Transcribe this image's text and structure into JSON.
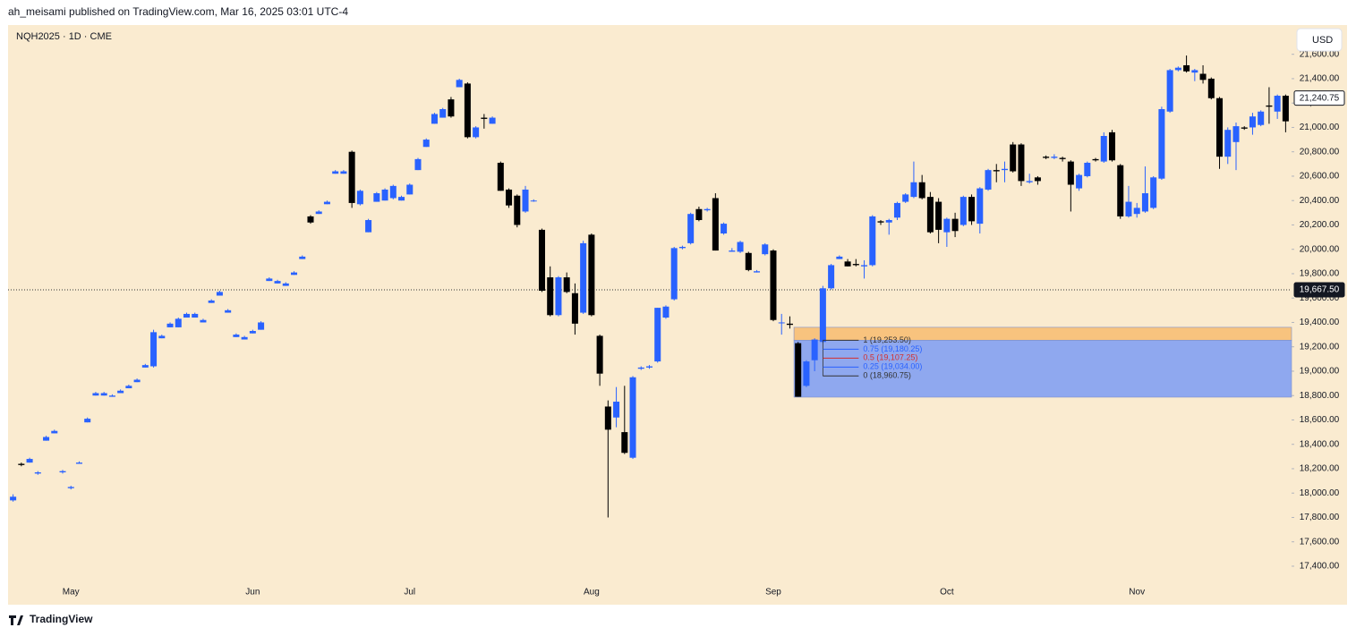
{
  "header": {
    "publisher": "ah_meisami published on TradingView.com, Mar 16, 2025 03:01 UTC-4"
  },
  "footer": {
    "brand": "TradingView"
  },
  "chart_data": {
    "type": "candlestick",
    "symbol": "NQH2025 · 1D · CME",
    "currency": "USD",
    "categories": [
      null,
      null,
      null,
      null,
      null,
      null,
      null,
      "May",
      null,
      null,
      null,
      null,
      null,
      null,
      null,
      null,
      null,
      null,
      null,
      null,
      null,
      null,
      null,
      null,
      null,
      null,
      null,
      null,
      null,
      "Jun",
      null,
      null,
      null,
      null,
      null,
      null,
      null,
      null,
      null,
      null,
      null,
      null,
      null,
      null,
      null,
      null,
      null,
      null,
      "Jul",
      null,
      null,
      null,
      null,
      null,
      null,
      null,
      null,
      null,
      null,
      null,
      null,
      null,
      null,
      null,
      null,
      null,
      null,
      null,
      null,
      null,
      "Aug",
      null,
      null,
      null,
      null,
      null,
      null,
      null,
      null,
      null,
      null,
      null,
      null,
      null,
      null,
      null,
      null,
      null,
      null,
      null,
      null,
      null,
      "Sep",
      null,
      null,
      null,
      null,
      null,
      null,
      null,
      null,
      null,
      null,
      null,
      null,
      null,
      null,
      null,
      null,
      null,
      null,
      null,
      null,
      "Oct",
      null,
      null,
      null,
      null,
      null,
      null,
      null,
      null,
      null,
      null,
      null,
      null,
      null,
      null,
      null,
      null,
      null,
      null,
      null,
      null,
      null,
      null,
      "Nov",
      null,
      null,
      null,
      null,
      null,
      null,
      null,
      null,
      null,
      null,
      null,
      null,
      null,
      null,
      null,
      null,
      null,
      null
    ],
    "open": [
      17940,
      18240,
      18250,
      18160,
      18430,
      18490,
      18170,
      18040,
      18240,
      18580,
      18800,
      18800,
      18790,
      18820,
      18860,
      18910,
      19030,
      19040,
      19270,
      19360,
      19360,
      19440,
      19440,
      19400,
      19560,
      19620,
      19480,
      19280,
      19260,
      19310,
      19340,
      19740,
      19720,
      19700,
      19790,
      19920,
      20270,
      20290,
      20370,
      20620,
      20620,
      20800,
      20370,
      20140,
      20390,
      20400,
      20420,
      20400,
      20450,
      20650,
      20840,
      21030,
      21080,
      21230,
      21330,
      21360,
      20920,
      21080,
      21030,
      20710,
      20490,
      20440,
      20310,
      20400,
      20160,
      19770,
      19460,
      19770,
      19640,
      19480,
      20120,
      19290,
      18710,
      18620,
      18500,
      18290,
      19020,
      19030,
      19080,
      19440,
      19590,
      20010,
      20050,
      20330,
      20320,
      20420,
      20130,
      19980,
      19980,
      19970,
      19810,
      19960,
      19990,
      19400,
      19390,
      19230,
      18880,
      19090,
      19240,
      19680,
      19920,
      19900,
      19880,
      19860,
      19870,
      20230,
      20220,
      20260,
      20390,
      20430,
      20550,
      20430,
      20390,
      20140,
      20250,
      20200,
      20430,
      20210,
      20490,
      20650,
      20650,
      20860,
      20860,
      20550,
      20590,
      20760,
      20750,
      20750,
      20720,
      20500,
      20600,
      20740,
      20720,
      20960,
      20690,
      20270,
      20290,
      20310,
      20340,
      20580,
      21130,
      21470,
      21510,
      21450,
      21440,
      21400,
      21240,
      20760,
      20880,
      21000,
      21000,
      21020,
      21180,
      21130,
      21260
    ],
    "high": [
      17990,
      18250,
      18290,
      18180,
      18470,
      18520,
      18190,
      18060,
      18260,
      18620,
      18830,
      18830,
      18810,
      18850,
      18890,
      18940,
      19060,
      19340,
      19300,
      19400,
      19440,
      19480,
      19480,
      19430,
      19590,
      19660,
      19510,
      19310,
      19290,
      19340,
      19410,
      19770,
      19750,
      19730,
      19820,
      19950,
      20280,
      20320,
      20400,
      20650,
      20650,
      20810,
      20490,
      20250,
      20470,
      20500,
      20530,
      20440,
      20540,
      20750,
      20910,
      21120,
      21160,
      21250,
      21400,
      21370,
      21010,
      21110,
      21090,
      20720,
      20500,
      20450,
      20520,
      20410,
      20170,
      19860,
      19780,
      19810,
      19720,
      20070,
      20130,
      19300,
      18760,
      18870,
      18880,
      18960,
      19040,
      19050,
      19520,
      19540,
      20020,
      20030,
      20300,
      20350,
      20340,
      20460,
      20220,
      20010,
      20070,
      19980,
      19830,
      20050,
      20000,
      19470,
      19450,
      19240,
      19090,
      19270,
      19700,
      19880,
      19950,
      19920,
      19920,
      19910,
      20280,
      20240,
      20250,
      20390,
      20460,
      20720,
      20610,
      20470,
      20420,
      20260,
      20300,
      20440,
      20450,
      20510,
      20660,
      20700,
      20720,
      20880,
      20870,
      20620,
      20600,
      20770,
      20780,
      20760,
      20730,
      20620,
      20720,
      20750,
      20960,
      20980,
      20700,
      20520,
      20380,
      20680,
      20600,
      21170,
      21480,
      21500,
      21590,
      21480,
      21510,
      21410,
      21250,
      21000,
      21040,
      21010,
      21120,
      21140,
      21330,
      21270,
      21270
    ],
    "low": [
      17930,
      18220,
      18250,
      18150,
      18430,
      18490,
      18160,
      18030,
      18240,
      18580,
      18800,
      18800,
      18790,
      18820,
      18860,
      18910,
      19030,
      19030,
      19270,
      19360,
      19360,
      19440,
      19440,
      19400,
      19560,
      19620,
      19480,
      19280,
      19260,
      19310,
      19340,
      19740,
      19720,
      19700,
      19790,
      19920,
      20210,
      20290,
      20370,
      20620,
      20620,
      20340,
      20360,
      20140,
      20390,
      20400,
      20410,
      20400,
      20450,
      20650,
      20840,
      21030,
      21080,
      21080,
      21330,
      20910,
      20910,
      20990,
      21030,
      20480,
      20340,
      20180,
      20300,
      20390,
      19650,
      19450,
      19450,
      19640,
      19300,
      19470,
      19450,
      18880,
      17800,
      18540,
      18320,
      18280,
      19010,
      19020,
      19070,
      19430,
      19580,
      20000,
      20040,
      20230,
      20310,
      19990,
      20120,
      19980,
      19970,
      19820,
      19810,
      19950,
      19410,
      19300,
      19350,
      18790,
      18870,
      19000,
      19230,
      19670,
      19920,
      19860,
      19860,
      19760,
      19860,
      20200,
      20120,
      20240,
      20380,
      20420,
      20410,
      20130,
      20050,
      20020,
      20100,
      20190,
      20200,
      20130,
      20480,
      20550,
      20550,
      20630,
      20520,
      20540,
      20530,
      20740,
      20740,
      20720,
      20310,
      20480,
      20590,
      20720,
      20710,
      20720,
      20250,
      20260,
      20260,
      20300,
      20330,
      20570,
      21120,
      21460,
      21450,
      21380,
      21360,
      21230,
      20660,
      20700,
      20650,
      20980,
      20940,
      21010,
      21030,
      21070,
      20960
    ],
    "close": [
      17970,
      18230,
      18280,
      18170,
      18460,
      18510,
      18180,
      18050,
      18250,
      18610,
      18820,
      18820,
      18800,
      18840,
      18880,
      18930,
      19050,
      19320,
      19290,
      19390,
      19430,
      19470,
      19470,
      19420,
      19580,
      19650,
      19500,
      19300,
      19280,
      19330,
      19400,
      19760,
      19740,
      19720,
      19810,
      19940,
      20220,
      20310,
      20390,
      20640,
      20640,
      20380,
      20480,
      20240,
      20460,
      20490,
      20520,
      20430,
      20530,
      20740,
      20900,
      21110,
      21150,
      21090,
      21390,
      20920,
      21000,
      21070,
      21080,
      20480,
      20360,
      20200,
      20490,
      20400,
      19660,
      19460,
      19770,
      19650,
      19390,
      20050,
      19460,
      18980,
      18520,
      18750,
      18330,
      18950,
      19030,
      19040,
      19520,
      19530,
      20010,
      20020,
      20290,
      20240,
      20330,
      19990,
      20210,
      19990,
      20060,
      19830,
      19820,
      20040,
      19420,
      19400,
      19380,
      18790,
      19080,
      19260,
      19680,
      19870,
      19940,
      19860,
      19870,
      19870,
      20270,
      20220,
      20240,
      20380,
      20450,
      20550,
      20420,
      20140,
      20160,
      20250,
      20150,
      20430,
      20230,
      20500,
      20650,
      20640,
      20660,
      20640,
      20560,
      20560,
      20560,
      20750,
      20760,
      20740,
      20530,
      20610,
      20710,
      20730,
      20930,
      20730,
      20270,
      20390,
      20340,
      20460,
      20590,
      21150,
      21470,
      21490,
      21460,
      21470,
      21390,
      21240,
      20760,
      20980,
      21010,
      20990,
      21090,
      21130,
      21170,
      21260,
      21050
    ],
    "up_color": "#2962ff",
    "down_color": "#000000",
    "ylim": [
      17275,
      21840
    ],
    "yticks": [
      {
        "value": 17400,
        "label": "17,400.00"
      },
      {
        "value": 17600,
        "label": "17,600.00"
      },
      {
        "value": 17800,
        "label": "17,800.00"
      },
      {
        "value": 18000,
        "label": "18,000.00"
      },
      {
        "value": 18200,
        "label": "18,200.00"
      },
      {
        "value": 18400,
        "label": "18,400.00"
      },
      {
        "value": 18600,
        "label": "18,600.00"
      },
      {
        "value": 18800,
        "label": "18,800.00"
      },
      {
        "value": 19000,
        "label": "19,000.00"
      },
      {
        "value": 19200,
        "label": "19,200.00"
      },
      {
        "value": 19400,
        "label": "19,400.00"
      },
      {
        "value": 19600,
        "label": "19,600.00"
      },
      {
        "value": 19800,
        "label": "19,800.00"
      },
      {
        "value": 20000,
        "label": "20,000.00"
      },
      {
        "value": 20200,
        "label": "20,200.00"
      },
      {
        "value": 20400,
        "label": "20,400.00"
      },
      {
        "value": 20600,
        "label": "20,600.00"
      },
      {
        "value": 20800,
        "label": "20,800.00"
      },
      {
        "value": 21000,
        "label": "21,000.00"
      },
      {
        "value": 21200,
        "label": "21,200.00"
      },
      {
        "value": 21400,
        "label": "21,400.00"
      },
      {
        "value": 21600,
        "label": "21,600.00"
      }
    ],
    "zones": [
      {
        "low": 19253.5,
        "high": 19360,
        "color": "#f8c37e"
      },
      {
        "low": 18787,
        "high": 19253.5,
        "color": "#8fa8ef"
      }
    ],
    "fib_levels": [
      {
        "value": 19253.5,
        "label": "1 (19,253.50)",
        "color": "#333333"
      },
      {
        "value": 19180.25,
        "label": "0.75 (19,180.25)",
        "color": "#2962ff"
      },
      {
        "value": 19107.25,
        "label": "0.5 (19,107.25)",
        "color": "#d32f2f"
      },
      {
        "value": 19034,
        "label": "0.25 (19,034.00)",
        "color": "#2962ff"
      },
      {
        "value": 18960.75,
        "label": "0 (18,960.75)",
        "color": "#333333"
      }
    ],
    "price_lines": [
      {
        "value": 21240.75,
        "label": "21,240.75",
        "style": "last"
      },
      {
        "value": 19667.5,
        "label": "19,667.50",
        "style": "line"
      }
    ]
  }
}
